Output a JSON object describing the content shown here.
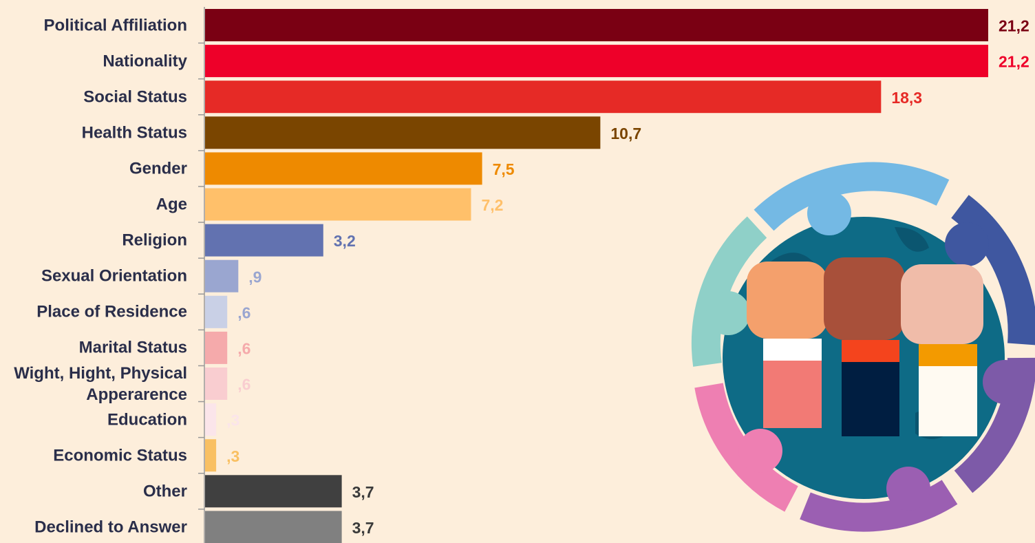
{
  "chart_data": {
    "type": "hbar",
    "categories": [
      "Political Affiliation",
      "Nationality",
      "Social Status",
      "Health Status",
      "Gender",
      "Age",
      "Religion",
      "Sexual Orientation",
      "Place of Residence",
      "Marital Status",
      "Wight, Hight, Physical Apperarence",
      "Education",
      "Economic Status",
      "Other",
      "Declined to Answer"
    ],
    "values": [
      21.2,
      21.2,
      18.3,
      10.7,
      7.5,
      7.2,
      3.2,
      0.9,
      0.6,
      0.6,
      0.6,
      0.3,
      0.3,
      3.7,
      3.7
    ],
    "value_labels": [
      "21,2",
      "21,2",
      "18,3",
      "10,7",
      "7,5",
      "7,2",
      "3,2",
      ",9",
      ",6",
      ",6",
      ",6",
      ",3",
      ",3",
      "3,7",
      "3,7"
    ],
    "colors": [
      "#7a0013",
      "#ee0029",
      "#e62a26",
      "#7a4500",
      "#ee8a00",
      "#ffc06a",
      "#6272b0",
      "#9aa6d0",
      "#c9d0e6",
      "#f5aaab",
      "#f9cdd0",
      "#fbe5ea",
      "#f9c062",
      "#404040",
      "#808080"
    ],
    "value_label_colors": [
      "#7a0013",
      "#ee0029",
      "#e62a26",
      "#7a4500",
      "#ee8a00",
      "#ffc06a",
      "#6272b0",
      "#9aa6d0",
      "#9aa6d0",
      "#f5aaab",
      "#f9cdd0",
      "#fbe5ea",
      "#f9c062",
      "#3a3a3a",
      "#3a3a3a"
    ],
    "xlim": [
      0,
      21.2
    ]
  }
}
